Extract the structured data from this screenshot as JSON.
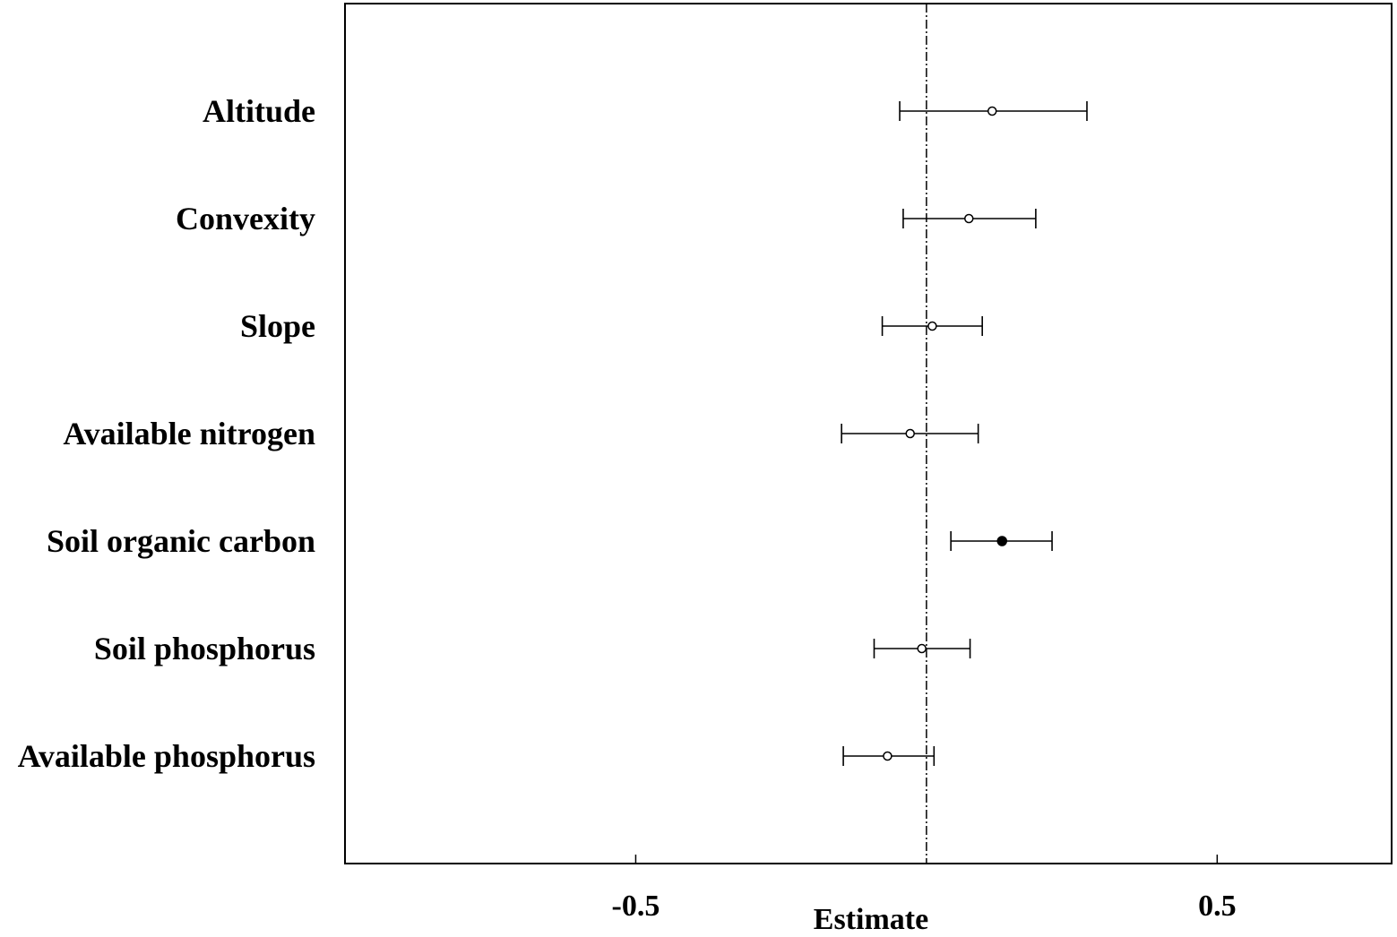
{
  "chart_data": {
    "type": "forest",
    "title": "",
    "xlabel": "Estimate",
    "ylabel": "",
    "xlim": [
      -1.0,
      0.8
    ],
    "x_ticks": [
      -0.5,
      0.5
    ],
    "x_tick_labels": [
      "-0.5",
      "0.5"
    ],
    "reference_line": 0,
    "grid": false,
    "categories": [
      "Altitude",
      "Convexity",
      "Slope",
      "Available nitrogen",
      "Soil organic carbon",
      "Soil phosphorus",
      "Available phosphorus"
    ],
    "series": [
      {
        "estimates": [
          0.113,
          0.073,
          0.01,
          -0.028,
          0.13,
          -0.008,
          -0.067
        ],
        "lower": [
          -0.046,
          -0.04,
          -0.076,
          -0.146,
          0.042,
          -0.09,
          -0.143
        ],
        "upper": [
          0.276,
          0.188,
          0.096,
          0.089,
          0.216,
          0.075,
          0.013
        ],
        "significant": [
          false,
          false,
          false,
          false,
          true,
          false,
          false
        ]
      }
    ],
    "colors": {
      "line": "#000000",
      "open_marker_fill": "#ffffff",
      "filled_marker": "#000000"
    }
  }
}
